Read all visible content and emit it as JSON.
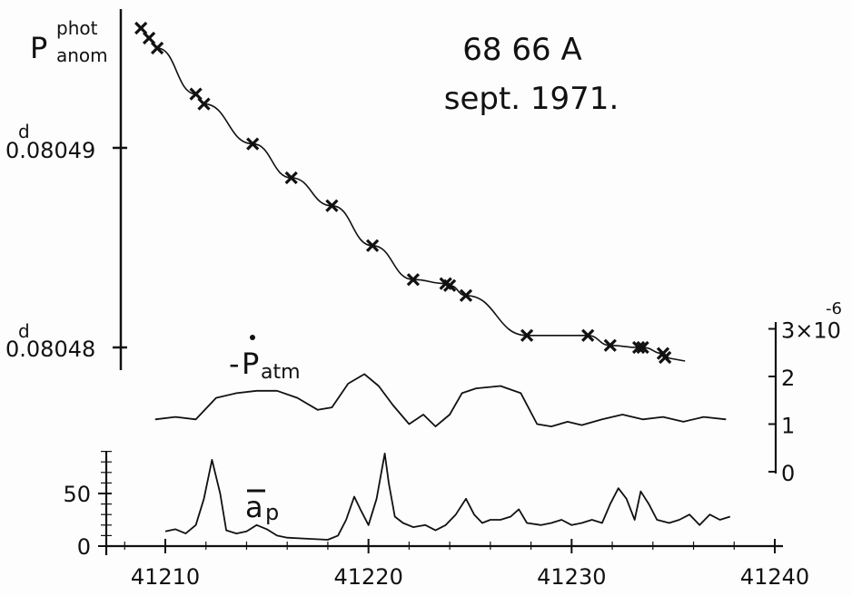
{
  "chart_data": [
    {
      "type": "scatter",
      "title": "68 66 A",
      "subtitle": "sept. 1971.",
      "ylabel": {
        "main": "P",
        "sup": "phot",
        "sub": "anom"
      },
      "yticks": [
        {
          "value": 0.08049,
          "unit": "d",
          "label": "0.08049"
        },
        {
          "value": 0.08048,
          "unit": "d",
          "label": "0.08048"
        }
      ],
      "ylim": [
        0.080475,
        0.080496
      ],
      "xlim": [
        41207,
        41240
      ],
      "series": [
        {
          "marker": "x",
          "points": [
            [
              41208.8,
              0.080496
            ],
            [
              41209.2,
              0.0804955
            ],
            [
              41209.6,
              0.080495
            ],
            [
              41211.5,
              0.0804927
            ],
            [
              41211.9,
              0.0804922
            ],
            [
              41214.3,
              0.0804902
            ],
            [
              41216.2,
              0.0804885
            ],
            [
              41218.2,
              0.0804871
            ],
            [
              41220.2,
              0.0804851
            ],
            [
              41222.2,
              0.0804834
            ],
            [
              41223.8,
              0.0804832
            ],
            [
              41224.0,
              0.0804831
            ],
            [
              41224.8,
              0.0804826
            ],
            [
              41227.8,
              0.0804806
            ],
            [
              41230.8,
              0.0804806
            ],
            [
              41231.9,
              0.0804801
            ],
            [
              41233.3,
              0.08048
            ],
            [
              41233.5,
              0.08048
            ],
            [
              41234.5,
              0.0804797
            ],
            [
              41234.6,
              0.0804795
            ]
          ]
        }
      ]
    },
    {
      "type": "line",
      "label": {
        "sign": "-",
        "main": "P",
        "sub": "atm"
      },
      "yaxis_side": "right",
      "yticks": [
        "0",
        "1",
        "2",
        "3×10"
      ],
      "yticks_exponent": "-6",
      "ylim": [
        0,
        3
      ],
      "x": [
        41209.5,
        41210.5,
        41211.5,
        41212.5,
        41213.5,
        41214.5,
        41215.5,
        41216.5,
        41217.5,
        41218.2,
        41219.0,
        41219.8,
        41220.5,
        41221.2,
        41222.0,
        41222.7,
        41223.3,
        41224.0,
        41224.6,
        41225.3,
        41226.5,
        41227.5,
        41228.3,
        41229.0,
        41229.8,
        41230.5,
        41231.5,
        41232.5,
        41233.5,
        41234.5,
        41235.5,
        41236.5,
        41237.6
      ],
      "y": [
        1.1,
        1.15,
        1.1,
        1.55,
        1.65,
        1.7,
        1.7,
        1.55,
        1.3,
        1.35,
        1.85,
        2.05,
        1.8,
        1.4,
        1.0,
        1.2,
        0.95,
        1.2,
        1.65,
        1.75,
        1.8,
        1.65,
        1.0,
        0.95,
        1.05,
        0.98,
        1.1,
        1.2,
        1.1,
        1.15,
        1.05,
        1.15,
        1.1
      ]
    },
    {
      "type": "line",
      "label": {
        "main": "a",
        "sub": "p",
        "overline": true
      },
      "yticks": [
        "0",
        "50"
      ],
      "ylim": [
        0,
        80
      ],
      "xticks": [
        "41210",
        "41220",
        "41230",
        "41240"
      ],
      "xlim": [
        41207,
        41240
      ],
      "x": [
        41210.0,
        41210.5,
        41211.0,
        41211.5,
        41211.9,
        41212.3,
        41212.7,
        41213.0,
        41213.5,
        41214.0,
        41214.5,
        41215.0,
        41215.5,
        41216.0,
        41217.0,
        41218.0,
        41218.5,
        41218.9,
        41219.3,
        41219.6,
        41220.0,
        41220.4,
        41220.8,
        41221.0,
        41221.3,
        41221.7,
        41222.2,
        41222.8,
        41223.3,
        41223.8,
        41224.3,
        41224.8,
        41225.2,
        41225.6,
        41226.0,
        41226.5,
        41227.0,
        41227.4,
        41227.8,
        41228.5,
        41229.0,
        41229.5,
        41230.0,
        41230.5,
        41231.0,
        41231.5,
        41231.9,
        41232.3,
        41232.7,
        41233.1,
        41233.4,
        41233.8,
        41234.2,
        41234.8,
        41235.3,
        41235.8,
        41236.3,
        41236.8,
        41237.3,
        41237.8
      ],
      "y": [
        14,
        16,
        12,
        20,
        45,
        82,
        50,
        15,
        12,
        14,
        20,
        16,
        10,
        8,
        7,
        6,
        10,
        25,
        47,
        35,
        20,
        45,
        88,
        60,
        28,
        22,
        18,
        20,
        15,
        20,
        30,
        45,
        30,
        22,
        25,
        25,
        28,
        35,
        22,
        20,
        22,
        25,
        20,
        22,
        25,
        22,
        40,
        55,
        45,
        25,
        52,
        40,
        25,
        22,
        25,
        30,
        20,
        30,
        25,
        28
      ]
    }
  ]
}
